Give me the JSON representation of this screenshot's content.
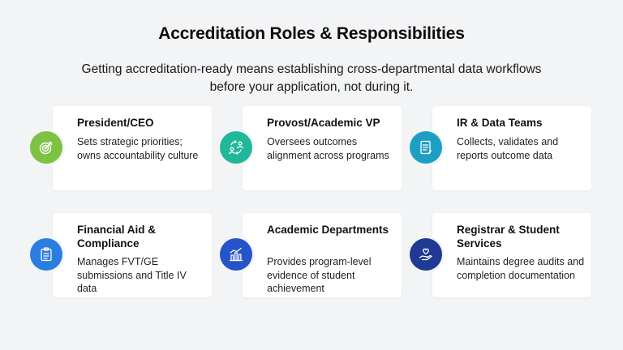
{
  "header": {
    "title": "Accreditation Roles & Responsibilities",
    "subtitle": "Getting accreditation-ready means establishing cross-departmental data workflows before your application, not during it."
  },
  "cards": [
    {
      "title": "President/CEO",
      "description": "Sets strategic priorities; owns accountability culture",
      "icon": "target-icon",
      "color": "#7dc242"
    },
    {
      "title": "Provost/Academic VP",
      "description": "Oversees outcomes alignment across programs",
      "icon": "people-exchange-icon",
      "color": "#1fb89a"
    },
    {
      "title": "IR & Data Teams",
      "description": "Collects, validates and reports outcome data",
      "icon": "document-icon",
      "color": "#1d9fc3"
    },
    {
      "title": "Financial Aid & Compliance",
      "description": "Manages FVT/GE submissions and Title IV data",
      "icon": "clipboard-icon",
      "color": "#2b7de0"
    },
    {
      "title": "Academic Departments",
      "description": "Provides program-level evidence of student achievement",
      "icon": "bar-chart-icon",
      "color": "#2553c9"
    },
    {
      "title": "Registrar & Student Services",
      "description": "Maintains degree audits and completion documentation",
      "icon": "hand-heart-icon",
      "color": "#1f3a93"
    }
  ]
}
